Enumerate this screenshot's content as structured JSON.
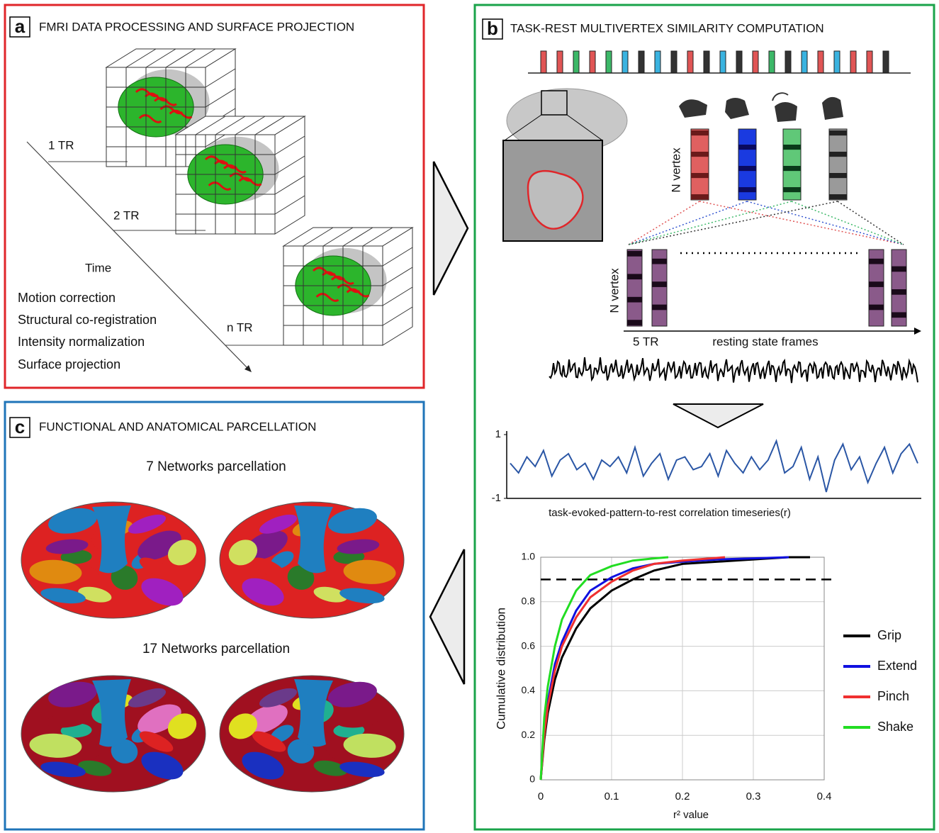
{
  "panels": {
    "a": {
      "letter": "a",
      "title": "FMRI DATA PROCESSING AND SURFACE PROJECTION",
      "frames": [
        "1 TR",
        "2 TR",
        "n TR"
      ],
      "time_label": "Time",
      "steps": [
        "Motion correction",
        "Structural co-registration",
        "Intensity normalization",
        "Surface projection"
      ]
    },
    "b": {
      "letter": "b",
      "title": "TASK-REST MULTIVERTEX SIMILARITY COMPUTATION",
      "vertex_label": "N vertex",
      "window_label": "5 TR",
      "frames_label": "resting state frames"
    },
    "c": {
      "letter": "c",
      "title": "FUNCTIONAL AND ANATOMICAL PARCELLATION",
      "parcellations": [
        "7 Networks parcellation",
        "17 Networks parcellation"
      ]
    }
  },
  "chart_data": [
    {
      "type": "line",
      "xlabel": "task-evoked-pattern-to-rest correlation timeseries(r)",
      "color": "#2a56a5",
      "ylim": [
        -1,
        1
      ],
      "yticks": [
        -1,
        1
      ],
      "values": [
        0.1,
        -0.2,
        0.3,
        0.0,
        0.5,
        -0.3,
        0.2,
        0.4,
        -0.1,
        0.1,
        -0.4,
        0.2,
        0.0,
        0.3,
        -0.2,
        0.6,
        -0.3,
        0.1,
        0.4,
        -0.4,
        0.2,
        0.3,
        -0.1,
        0.0,
        0.4,
        -0.3,
        0.5,
        0.1,
        -0.2,
        0.3,
        -0.1,
        0.2,
        0.8,
        -0.2,
        0.0,
        0.6,
        -0.4,
        0.3,
        -0.8,
        0.2,
        0.7,
        -0.1,
        0.3,
        -0.5,
        0.1,
        0.6,
        -0.2,
        0.4,
        0.7,
        0.1
      ]
    },
    {
      "type": "line",
      "xlabel": "r² value",
      "ylabel": "Cumulative distribution",
      "xlim": [
        0,
        0.4
      ],
      "ylim": [
        0,
        1
      ],
      "xticks": [
        0,
        0.1,
        0.2,
        0.3,
        0.4
      ],
      "yticks": [
        0,
        0.2,
        0.4,
        0.6,
        0.8,
        {
          "value": 1,
          "label": "1.0"
        }
      ],
      "grid": true,
      "hline": 0.9,
      "series": [
        {
          "name": "Grip",
          "color": "#000000",
          "x": [
            0,
            0.005,
            0.01,
            0.02,
            0.03,
            0.05,
            0.07,
            0.1,
            0.13,
            0.16,
            0.2,
            0.25,
            0.3,
            0.35,
            0.38
          ],
          "values": [
            0,
            0.18,
            0.3,
            0.45,
            0.55,
            0.68,
            0.77,
            0.85,
            0.9,
            0.94,
            0.97,
            0.98,
            0.99,
            1,
            1
          ]
        },
        {
          "name": "Extend",
          "color": "#1010e0",
          "x": [
            0,
            0.005,
            0.01,
            0.02,
            0.03,
            0.05,
            0.07,
            0.1,
            0.13,
            0.16,
            0.2,
            0.25,
            0.3,
            0.35
          ],
          "values": [
            0,
            0.22,
            0.35,
            0.52,
            0.62,
            0.76,
            0.85,
            0.91,
            0.95,
            0.97,
            0.98,
            0.99,
            0.995,
            1
          ]
        },
        {
          "name": "Pinch",
          "color": "#f03030",
          "x": [
            0,
            0.005,
            0.01,
            0.02,
            0.03,
            0.05,
            0.07,
            0.1,
            0.13,
            0.16,
            0.2,
            0.26
          ],
          "values": [
            0,
            0.2,
            0.33,
            0.49,
            0.6,
            0.73,
            0.82,
            0.89,
            0.94,
            0.97,
            0.985,
            1
          ]
        },
        {
          "name": "Shake",
          "color": "#22dd22",
          "x": [
            0,
            0.005,
            0.01,
            0.02,
            0.03,
            0.05,
            0.07,
            0.1,
            0.13,
            0.16,
            0.18
          ],
          "values": [
            0,
            0.28,
            0.42,
            0.6,
            0.72,
            0.85,
            0.92,
            0.96,
            0.985,
            0.995,
            1
          ]
        }
      ],
      "legend": "right"
    }
  ]
}
